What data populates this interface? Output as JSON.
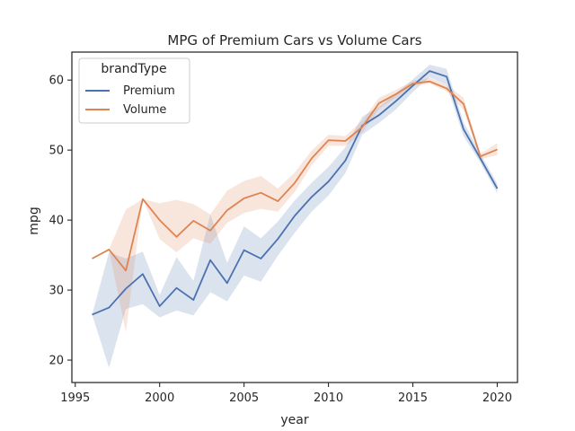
{
  "chart_data": {
    "type": "line",
    "title": "MPG of Premium Cars vs Volume Cars",
    "xlabel": "year",
    "ylabel": "mpg",
    "xlim": [
      1994.8,
      2021.2
    ],
    "ylim": [
      16.8,
      64.0
    ],
    "xticks": [
      1995,
      2000,
      2005,
      2010,
      2015,
      2020
    ],
    "yticks": [
      20,
      30,
      40,
      50,
      60
    ],
    "grid": false,
    "legend": {
      "title": "brandType",
      "placement": "top-left"
    },
    "series": [
      {
        "name": "Premium",
        "color": "#4c72b0",
        "x": [
          1996,
          1997,
          1998,
          1999,
          2000,
          2001,
          2002,
          2003,
          2004,
          2005,
          2006,
          2007,
          2008,
          2009,
          2010,
          2011,
          2012,
          2013,
          2014,
          2015,
          2016,
          2017,
          2018,
          2019,
          2020
        ],
        "y": [
          26.5,
          27.5,
          30.2,
          32.3,
          27.7,
          30.3,
          28.6,
          34.3,
          31.0,
          35.7,
          34.5,
          37.3,
          40.6,
          43.3,
          45.5,
          48.5,
          53.5,
          55.0,
          57.0,
          59.2,
          61.3,
          60.5,
          53.0,
          48.8,
          44.5
        ],
        "ci_lower": [
          26.5,
          18.9,
          27.3,
          28.0,
          26.1,
          27.1,
          26.4,
          29.7,
          28.4,
          32.1,
          31.2,
          34.9,
          38.2,
          41.2,
          43.5,
          46.7,
          52.2,
          53.9,
          55.8,
          58.3,
          60.4,
          59.3,
          52.0,
          48.2,
          43.8
        ],
        "ci_upper": [
          26.5,
          35.4,
          34.5,
          35.5,
          29.3,
          34.7,
          31.3,
          40.8,
          33.9,
          39.1,
          37.4,
          39.8,
          42.8,
          45.3,
          47.6,
          50.4,
          54.8,
          56.2,
          58.1,
          60.1,
          62.2,
          61.6,
          54.0,
          49.5,
          45.2
        ]
      },
      {
        "name": "Volume",
        "color": "#dd8452",
        "x": [
          1996,
          1997,
          1998,
          1999,
          2000,
          2001,
          2002,
          2003,
          2004,
          2005,
          2006,
          2007,
          2008,
          2009,
          2010,
          2011,
          2012,
          2013,
          2014,
          2015,
          2016,
          2017,
          2018,
          2019,
          2020
        ],
        "y": [
          34.5,
          35.8,
          32.8,
          43.0,
          40.0,
          37.6,
          39.9,
          38.5,
          41.4,
          43.1,
          43.9,
          42.7,
          45.3,
          48.8,
          51.4,
          51.3,
          53.3,
          56.7,
          58.0,
          59.5,
          59.8,
          58.8,
          56.6,
          49.1,
          50.1
        ],
        "ci_lower": [
          34.5,
          35.8,
          24.0,
          43.0,
          37.3,
          35.4,
          37.4,
          36.6,
          39.6,
          41.0,
          41.6,
          41.2,
          44.0,
          47.8,
          50.6,
          50.6,
          52.5,
          55.9,
          57.5,
          59.2,
          59.5,
          58.4,
          55.7,
          48.7,
          49.3
        ],
        "ci_upper": [
          34.5,
          35.8,
          41.5,
          43.0,
          42.4,
          42.9,
          42.3,
          40.8,
          44.2,
          45.6,
          46.3,
          44.5,
          46.8,
          49.9,
          52.2,
          52.0,
          54.2,
          57.5,
          58.6,
          59.9,
          60.3,
          59.3,
          57.5,
          49.5,
          51.0
        ]
      }
    ]
  }
}
